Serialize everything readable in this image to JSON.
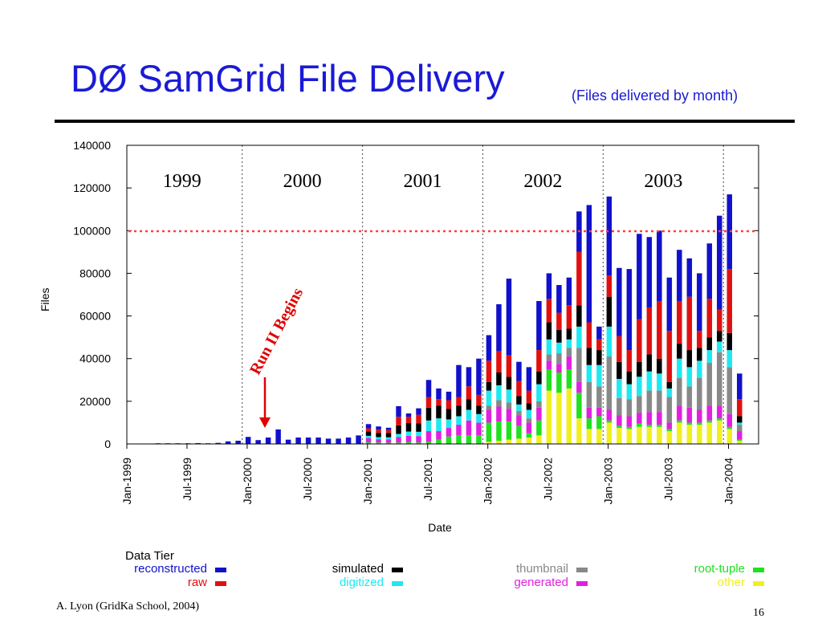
{
  "title": "DØ SamGrid File Delivery",
  "subtitle": "(Files delivered by month)",
  "footer": {
    "author": "A. Lyon (GridKa School, 2004)",
    "page": "16"
  },
  "annotations": {
    "years": [
      "1999",
      "2000",
      "2001",
      "2002",
      "2003"
    ],
    "run2": "Run II Begins"
  },
  "legend": {
    "title": "Data Tier",
    "items": [
      {
        "label": "reconstructed",
        "color": "#1111cc"
      },
      {
        "label": "raw",
        "color": "#e01010"
      },
      {
        "label": "simulated",
        "color": "#000000"
      },
      {
        "label": "digitized",
        "color": "#20e8f0"
      },
      {
        "label": "thumbnail",
        "color": "#888888"
      },
      {
        "label": "generated",
        "color": "#e020e0"
      },
      {
        "label": "root-tuple",
        "color": "#20e020"
      },
      {
        "label": "other",
        "color": "#f0f020"
      }
    ]
  },
  "chart_data": {
    "type": "bar",
    "stacked": true,
    "title": "",
    "xlabel": "Date",
    "ylabel": "Files",
    "ylim": [
      0,
      140000
    ],
    "y_ticks": [
      "0",
      "20000",
      "40000",
      "60000",
      "80000",
      "100000",
      "120000",
      "140000"
    ],
    "x_ticks": [
      "Jan-1999",
      "Jul-1999",
      "Jan-2000",
      "Jul-2000",
      "Jan-2001",
      "Jul-2001",
      "Jan-2002",
      "Jul-2002",
      "Jan-2003",
      "Jul-2003",
      "Jan-2004"
    ],
    "reference_line": {
      "value": 100000,
      "color": "#ff4040",
      "style": "dotted"
    },
    "categories": [
      "1999-04",
      "1999-05",
      "1999-06",
      "1999-07",
      "1999-08",
      "1999-09",
      "1999-10",
      "1999-11",
      "1999-12",
      "2000-01",
      "2000-02",
      "2000-03",
      "2000-04",
      "2000-05",
      "2000-06",
      "2000-07",
      "2000-08",
      "2000-09",
      "2000-10",
      "2000-11",
      "2000-12",
      "2001-01",
      "2001-02",
      "2001-03",
      "2001-04",
      "2001-05",
      "2001-06",
      "2001-07",
      "2001-08",
      "2001-09",
      "2001-10",
      "2001-11",
      "2001-12",
      "2002-01",
      "2002-02",
      "2002-03",
      "2002-04",
      "2002-05",
      "2002-06",
      "2002-07",
      "2002-08",
      "2002-09",
      "2002-10",
      "2002-11",
      "2002-12",
      "2003-01",
      "2003-02",
      "2003-03",
      "2003-04",
      "2003-05",
      "2003-06",
      "2003-07",
      "2003-08",
      "2003-09",
      "2003-10",
      "2003-11",
      "2003-12",
      "2004-01",
      "2004-02"
    ],
    "series": [
      {
        "name": "other",
        "color": "#f0f020",
        "values": [
          0,
          0,
          0,
          0,
          0,
          0,
          0,
          0,
          0,
          0,
          0,
          0,
          0,
          0,
          0,
          0,
          0,
          0,
          0,
          0,
          0,
          0,
          0,
          0,
          0,
          0,
          0,
          0,
          0,
          0,
          0,
          0,
          0,
          1000,
          1500,
          2000,
          2500,
          3000,
          4000,
          25000,
          24000,
          26000,
          12000,
          7000,
          7000,
          10000,
          7500,
          7000,
          8000,
          8000,
          8000,
          6000,
          10000,
          9000,
          9000,
          10000,
          11000,
          7000,
          1500
        ]
      },
      {
        "name": "root-tuple",
        "color": "#20e020",
        "values": [
          0,
          0,
          0,
          0,
          0,
          0,
          0,
          0,
          0,
          0,
          0,
          0,
          0,
          0,
          0,
          0,
          0,
          0,
          0,
          0,
          0,
          800,
          700,
          600,
          700,
          800,
          700,
          1000,
          2000,
          3500,
          4000,
          4000,
          4000,
          9000,
          9000,
          8500,
          6000,
          2000,
          7000,
          10000,
          9500,
          9000,
          12000,
          5000,
          6000,
          1000,
          1000,
          1000,
          1500,
          1000,
          1000,
          1000,
          1000,
          1000,
          1000,
          1000,
          1000,
          1000,
          500
        ]
      },
      {
        "name": "generated",
        "color": "#e020e0",
        "values": [
          0,
          0,
          0,
          0,
          0,
          0,
          0,
          0,
          0,
          0,
          0,
          0,
          0,
          0,
          0,
          0,
          0,
          0,
          0,
          0,
          0,
          2000,
          1500,
          1500,
          2500,
          3000,
          3000,
          5000,
          4000,
          4000,
          5000,
          7000,
          6000,
          6000,
          7000,
          6000,
          5000,
          5000,
          6000,
          4000,
          4000,
          6000,
          5000,
          5000,
          4000,
          5000,
          5000,
          5000,
          5000,
          6000,
          6000,
          3000,
          7000,
          7000,
          6000,
          7000,
          6000,
          6000,
          4000
        ]
      },
      {
        "name": "thumbnail",
        "color": "#888888",
        "values": [
          0,
          0,
          0,
          0,
          0,
          0,
          0,
          0,
          0,
          0,
          0,
          0,
          0,
          0,
          0,
          0,
          0,
          0,
          0,
          0,
          0,
          0,
          0,
          0,
          0,
          0,
          0,
          0,
          0,
          0,
          0,
          0,
          0,
          2000,
          3000,
          3000,
          2000,
          2000,
          3000,
          3000,
          5000,
          4000,
          16000,
          12000,
          10000,
          25000,
          8000,
          8000,
          8000,
          10000,
          10000,
          12000,
          13000,
          10000,
          15000,
          20000,
          25000,
          22000,
          3000
        ]
      },
      {
        "name": "digitized",
        "color": "#20e8f0",
        "values": [
          0,
          0,
          0,
          0,
          0,
          0,
          0,
          0,
          0,
          0,
          0,
          0,
          0,
          0,
          0,
          0,
          0,
          0,
          0,
          0,
          0,
          1000,
          1000,
          1000,
          1500,
          2000,
          2000,
          5000,
          6000,
          4000,
          4000,
          5000,
          4000,
          7000,
          7000,
          6000,
          3000,
          4000,
          8000,
          7000,
          5000,
          4000,
          10000,
          8000,
          10000,
          14000,
          9000,
          7000,
          9000,
          9000,
          8000,
          4000,
          9000,
          9000,
          8000,
          6000,
          5000,
          8000,
          1000
        ]
      },
      {
        "name": "simulated",
        "color": "#000000",
        "values": [
          0,
          0,
          0,
          0,
          0,
          0,
          0,
          0,
          0,
          0,
          0,
          0,
          0,
          0,
          0,
          0,
          0,
          0,
          0,
          0,
          0,
          2000,
          2000,
          2000,
          4000,
          4000,
          4000,
          6000,
          6000,
          5000,
          5000,
          5000,
          4000,
          4000,
          6000,
          6000,
          4000,
          3000,
          6000,
          8000,
          6000,
          5000,
          10000,
          8000,
          7000,
          14000,
          8000,
          6000,
          7000,
          8000,
          7000,
          3000,
          7000,
          8000,
          6000,
          6000,
          5000,
          8000,
          3000
        ]
      },
      {
        "name": "raw",
        "color": "#e01010",
        "values": [
          0,
          0,
          0,
          0,
          0,
          0,
          0,
          0,
          0,
          0,
          0,
          0,
          0,
          0,
          0,
          0,
          0,
          0,
          0,
          0,
          0,
          1500,
          1500,
          1500,
          4000,
          3000,
          4000,
          5000,
          3000,
          4000,
          4000,
          6000,
          5000,
          10000,
          10000,
          10000,
          7000,
          6000,
          10000,
          11000,
          8000,
          11000,
          25000,
          12000,
          5000,
          10000,
          12000,
          10000,
          20000,
          22000,
          27000,
          24000,
          20000,
          25000,
          8000,
          18000,
          10000,
          30000,
          8000
        ]
      },
      {
        "name": "reconstructed",
        "color": "#1111cc",
        "values": [
          300,
          300,
          300,
          300,
          400,
          300,
          500,
          1200,
          1500,
          3300,
          1800,
          3000,
          6800,
          2000,
          3000,
          3000,
          3000,
          2500,
          2500,
          3000,
          4000,
          2000,
          1500,
          1000,
          5000,
          1500,
          3000,
          8000,
          5000,
          4000,
          15000,
          9000,
          17000,
          12000,
          22000,
          36000,
          9000,
          11000,
          23000,
          12000,
          13000,
          13000,
          19000,
          55000,
          6000,
          37000,
          32000,
          38000,
          40000,
          33000,
          33000,
          25000,
          24000,
          18000,
          27000,
          26000,
          44000,
          35000,
          12000
        ]
      }
    ]
  }
}
